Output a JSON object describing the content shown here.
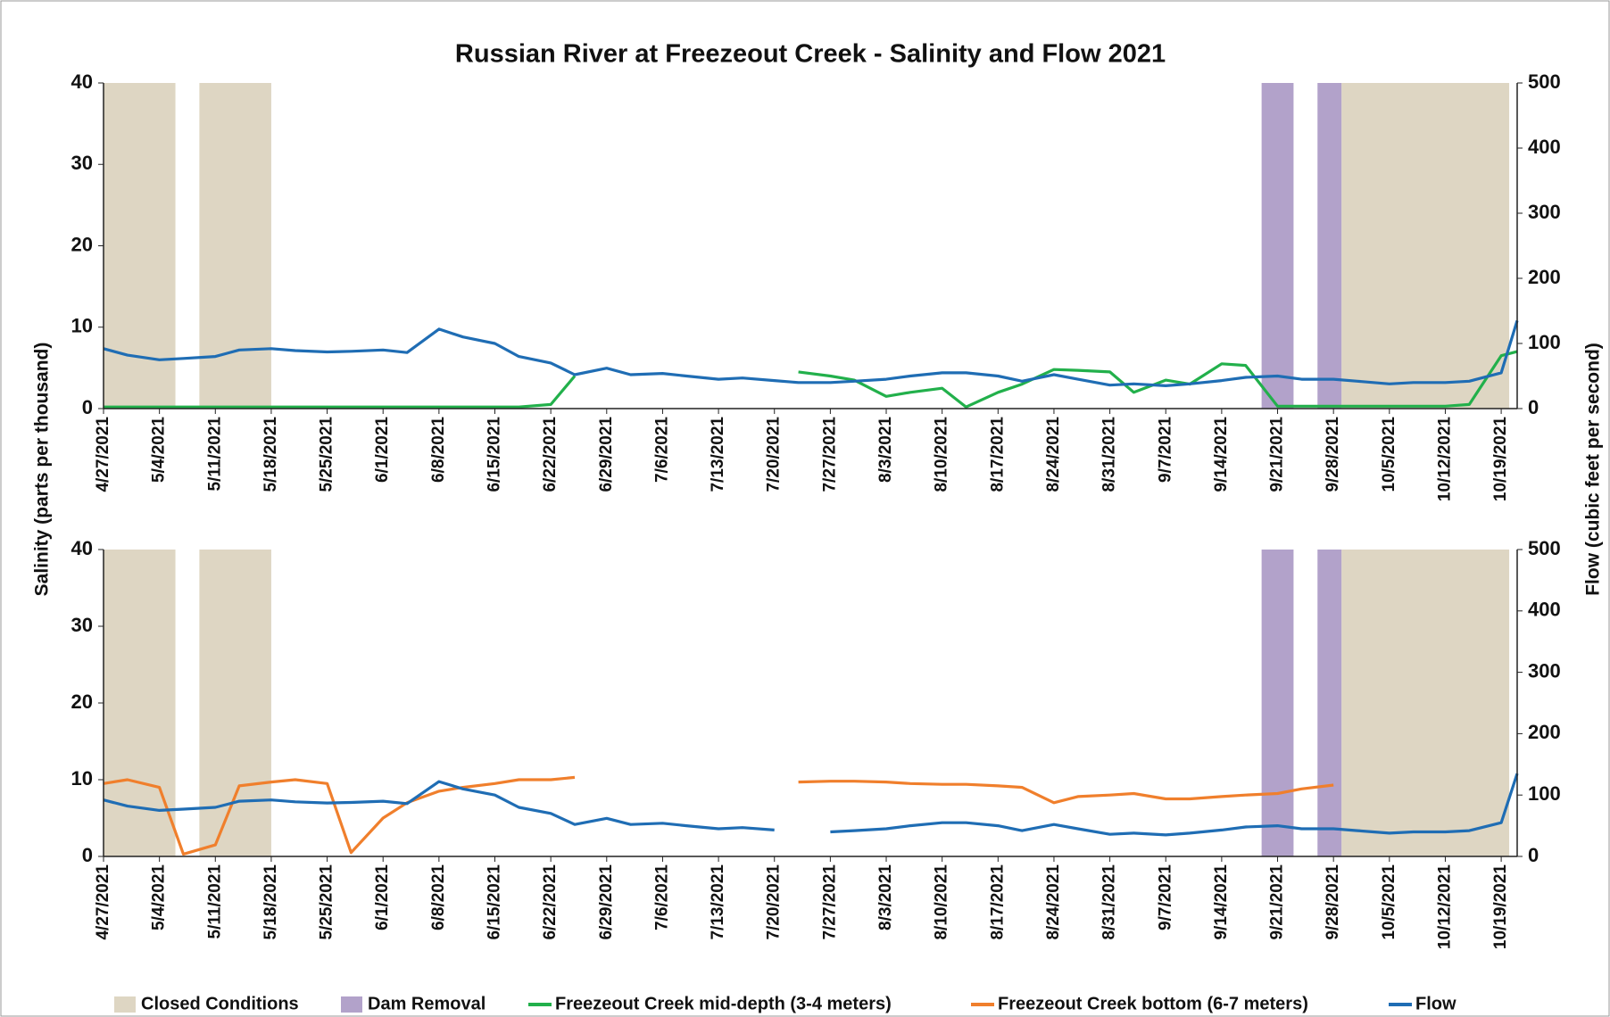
{
  "title": "Russian River at Freezeout Creek - Salinity and Flow 2021",
  "ylabel": "Salinity (parts per thousand)",
  "y2label": "Flow (cubic feet per second)",
  "chart_data": [
    {
      "type": "line",
      "x": [
        "4/27/2021",
        "4/30/2021",
        "5/4/2021",
        "5/7/2021",
        "5/11/2021",
        "5/14/2021",
        "5/18/2021",
        "5/21/2021",
        "5/25/2021",
        "5/28/2021",
        "6/1/2021",
        "6/4/2021",
        "6/8/2021",
        "6/11/2021",
        "6/15/2021",
        "6/18/2021",
        "6/22/2021",
        "6/25/2021",
        "6/29/2021",
        "7/2/2021",
        "7/6/2021",
        "7/9/2021",
        "7/13/2021",
        "7/16/2021",
        "7/20/2021",
        "7/23/2021",
        "7/27/2021",
        "7/30/2021",
        "8/3/2021",
        "8/6/2021",
        "8/10/2021",
        "8/13/2021",
        "8/17/2021",
        "8/20/2021",
        "8/24/2021",
        "8/27/2021",
        "8/31/2021",
        "9/3/2021",
        "9/7/2021",
        "9/10/2021",
        "9/14/2021",
        "9/17/2021",
        "9/21/2021",
        "9/24/2021",
        "9/28/2021",
        "10/1/2021",
        "10/5/2021",
        "10/8/2021",
        "10/12/2021",
        "10/15/2021",
        "10/19/2021",
        "10/21/2021"
      ],
      "xlim": [
        "4/27/2021",
        "10/21/2021"
      ],
      "xticks": [
        "4/27/2021",
        "5/4/2021",
        "5/11/2021",
        "5/18/2021",
        "5/25/2021",
        "6/1/2021",
        "6/8/2021",
        "6/15/2021",
        "6/22/2021",
        "6/29/2021",
        "7/6/2021",
        "7/13/2021",
        "7/20/2021",
        "7/27/2021",
        "8/3/2021",
        "8/10/2021",
        "8/17/2021",
        "8/24/2021",
        "8/31/2021",
        "9/7/2021",
        "9/14/2021",
        "9/21/2021",
        "9/28/2021",
        "10/5/2021",
        "10/12/2021",
        "10/19/2021"
      ],
      "ylim": [
        0,
        40
      ],
      "yticks": [
        0,
        10,
        20,
        30,
        40
      ],
      "y2lim": [
        0,
        500
      ],
      "y2ticks": [
        0,
        100,
        200,
        300,
        400,
        500
      ],
      "spans": [
        {
          "name": "Closed Conditions",
          "color": "#ded6c3",
          "ranges": [
            [
              "4/27/2021",
              "5/6/2021"
            ],
            [
              "5/9/2021",
              "5/18/2021"
            ],
            [
              "9/29/2021",
              "10/20/2021"
            ]
          ]
        },
        {
          "name": "Dam Removal",
          "color": "#b2a2ca",
          "ranges": [
            [
              "9/19/2021",
              "9/23/2021"
            ],
            [
              "9/26/2021",
              "9/29/2021"
            ]
          ]
        }
      ],
      "series": [
        {
          "name": "Freezeout Creek mid-depth (3-4 meters)",
          "color": "#22b04b",
          "values": [
            0.2,
            0.2,
            0.2,
            0.2,
            0.2,
            0.2,
            0.2,
            0.2,
            0.2,
            0.2,
            0.2,
            0.2,
            0.2,
            0.2,
            0.2,
            0.2,
            0.5,
            4,
            null,
            null,
            null,
            null,
            null,
            null,
            null,
            4.5,
            4,
            3.5,
            1.5,
            2,
            2.5,
            0.2,
            2,
            3,
            4.8,
            4.7,
            4.5,
            2,
            3.5,
            3,
            5.5,
            5.3,
            0.3,
            0.3,
            0.3,
            0.3,
            0.3,
            0.3,
            0.3,
            0.5,
            6.5,
            7
          ]
        },
        {
          "name": "Flow",
          "color": "#1f6db4",
          "axis": "y2",
          "values": [
            92,
            82,
            75,
            77,
            80,
            90,
            92,
            89,
            87,
            88,
            90,
            86,
            122,
            110,
            100,
            80,
            70,
            52,
            62,
            52,
            54,
            50,
            45,
            47,
            43,
            40,
            40,
            42,
            45,
            50,
            55,
            55,
            50,
            42,
            52,
            45,
            36,
            38,
            35,
            38,
            43,
            48,
            50,
            45,
            45,
            42,
            38,
            40,
            40,
            42,
            55,
            135
          ]
        }
      ]
    },
    {
      "type": "line",
      "x": [
        "4/27/2021",
        "4/30/2021",
        "5/4/2021",
        "5/7/2021",
        "5/11/2021",
        "5/14/2021",
        "5/18/2021",
        "5/21/2021",
        "5/25/2021",
        "5/28/2021",
        "6/1/2021",
        "6/4/2021",
        "6/8/2021",
        "6/11/2021",
        "6/15/2021",
        "6/18/2021",
        "6/22/2021",
        "6/25/2021",
        "6/29/2021",
        "7/2/2021",
        "7/6/2021",
        "7/9/2021",
        "7/13/2021",
        "7/16/2021",
        "7/20/2021",
        "7/23/2021",
        "7/27/2021",
        "7/30/2021",
        "8/3/2021",
        "8/6/2021",
        "8/10/2021",
        "8/13/2021",
        "8/17/2021",
        "8/20/2021",
        "8/24/2021",
        "8/27/2021",
        "8/31/2021",
        "9/3/2021",
        "9/7/2021",
        "9/10/2021",
        "9/14/2021",
        "9/17/2021",
        "9/21/2021",
        "9/24/2021",
        "9/28/2021",
        "10/1/2021",
        "10/5/2021",
        "10/8/2021",
        "10/12/2021",
        "10/15/2021",
        "10/19/2021",
        "10/21/2021"
      ],
      "xlim": [
        "4/27/2021",
        "10/21/2021"
      ],
      "xticks": [
        "4/27/2021",
        "5/4/2021",
        "5/11/2021",
        "5/18/2021",
        "5/25/2021",
        "6/1/2021",
        "6/8/2021",
        "6/15/2021",
        "6/22/2021",
        "6/29/2021",
        "7/6/2021",
        "7/13/2021",
        "7/20/2021",
        "7/27/2021",
        "8/3/2021",
        "8/10/2021",
        "8/17/2021",
        "8/24/2021",
        "8/31/2021",
        "9/7/2021",
        "9/14/2021",
        "9/21/2021",
        "9/28/2021",
        "10/5/2021",
        "10/12/2021",
        "10/19/2021"
      ],
      "ylim": [
        0,
        40
      ],
      "yticks": [
        0,
        10,
        20,
        30,
        40
      ],
      "y2lim": [
        0,
        500
      ],
      "y2ticks": [
        0,
        100,
        200,
        300,
        400,
        500
      ],
      "spans": [
        {
          "name": "Closed Conditions",
          "color": "#ded6c3",
          "ranges": [
            [
              "4/27/2021",
              "5/6/2021"
            ],
            [
              "5/9/2021",
              "5/18/2021"
            ],
            [
              "9/29/2021",
              "10/20/2021"
            ]
          ]
        },
        {
          "name": "Dam Removal",
          "color": "#b2a2ca",
          "ranges": [
            [
              "9/19/2021",
              "9/23/2021"
            ],
            [
              "9/26/2021",
              "9/29/2021"
            ]
          ]
        }
      ],
      "series": [
        {
          "name": "Freezeout Creek bottom (6-7 meters)",
          "color": "#f07f2c",
          "values": [
            9.5,
            10,
            9,
            0.3,
            1.5,
            9.2,
            9.7,
            10,
            9.5,
            0.5,
            5,
            7,
            8.5,
            9,
            9.5,
            10,
            10,
            10.3,
            null,
            null,
            null,
            null,
            null,
            null,
            null,
            9.7,
            9.8,
            9.8,
            9.7,
            9.5,
            9.4,
            9.4,
            9.2,
            9,
            7,
            7.8,
            8,
            8.2,
            7.5,
            7.5,
            7.8,
            8,
            8.2,
            8.8,
            9.3,
            null,
            null,
            null,
            null,
            null,
            null,
            null
          ]
        },
        {
          "name": "Flow",
          "color": "#1f6db4",
          "axis": "y2",
          "values": [
            92,
            82,
            75,
            77,
            80,
            90,
            92,
            89,
            87,
            88,
            90,
            86,
            122,
            110,
            100,
            80,
            70,
            52,
            62,
            52,
            54,
            50,
            45,
            47,
            43,
            null,
            40,
            42,
            45,
            50,
            55,
            55,
            50,
            42,
            52,
            45,
            36,
            38,
            35,
            38,
            43,
            48,
            50,
            45,
            45,
            42,
            38,
            40,
            40,
            42,
            55,
            135
          ]
        }
      ]
    }
  ]
}
